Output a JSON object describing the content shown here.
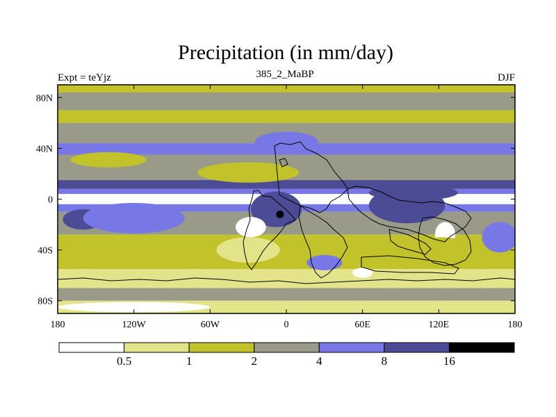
{
  "chart_data": {
    "type": "heatmap",
    "title": "Precipitation (in mm/day)",
    "left_label": "Expt = teYjz",
    "center_label": "385_2_MaBP",
    "right_label": "DJF",
    "x_range": [
      -180,
      180
    ],
    "y_range": [
      -90,
      90
    ],
    "x_ticks": [
      {
        "value": -180,
        "label": "180"
      },
      {
        "value": -120,
        "label": "120W"
      },
      {
        "value": -60,
        "label": "60W"
      },
      {
        "value": 0,
        "label": "0"
      },
      {
        "value": 60,
        "label": "60E"
      },
      {
        "value": 120,
        "label": "120E"
      },
      {
        "value": 180,
        "label": "180"
      }
    ],
    "y_ticks": [
      {
        "value": 80,
        "label": "80N"
      },
      {
        "value": 40,
        "label": "40N"
      },
      {
        "value": 0,
        "label": "0"
      },
      {
        "value": -40,
        "label": "40S"
      },
      {
        "value": -80,
        "label": "80S"
      }
    ],
    "levels": [
      0.5,
      1,
      2,
      4,
      8,
      16
    ],
    "level_labels": [
      "0.5",
      "1",
      "2",
      "4",
      "8",
      "16"
    ],
    "colors": [
      "#ffffff",
      "#e3e38a",
      "#c2c22a",
      "#9a9a88",
      "#7777e6",
      "#4b4b96",
      "#000000"
    ],
    "bands": [
      {
        "lat_from": 90,
        "lat_to": 84,
        "level_index": 2
      },
      {
        "lat_from": 84,
        "lat_to": 70,
        "level_index": 3
      },
      {
        "lat_from": 70,
        "lat_to": 60,
        "level_index": 2
      },
      {
        "lat_from": 60,
        "lat_to": 44,
        "level_index": 3
      },
      {
        "lat_from": 44,
        "lat_to": 35,
        "level_index": 4
      },
      {
        "lat_from": 35,
        "lat_to": 15,
        "level_index": 3
      },
      {
        "lat_from": 15,
        "lat_to": 8,
        "level_index": 5
      },
      {
        "lat_from": 8,
        "lat_to": 4,
        "level_index": 4
      },
      {
        "lat_from": 4,
        "lat_to": -4,
        "level_index": 0
      },
      {
        "lat_from": -4,
        "lat_to": -10,
        "level_index": 4
      },
      {
        "lat_from": -10,
        "lat_to": -28,
        "level_index": 3
      },
      {
        "lat_from": -28,
        "lat_to": -55,
        "level_index": 2
      },
      {
        "lat_from": -55,
        "lat_to": -70,
        "level_index": 1
      },
      {
        "lat_from": -70,
        "lat_to": -80,
        "level_index": 3
      },
      {
        "lat_from": -80,
        "lat_to": -90,
        "level_index": 1
      }
    ],
    "patches": [
      {
        "lon": -140,
        "lat": 31,
        "rlon": 30,
        "rlat": 6,
        "level_index": 2
      },
      {
        "lon": -30,
        "lat": 21,
        "rlon": 40,
        "rlat": 8,
        "level_index": 2
      },
      {
        "lon": -160,
        "lat": -16,
        "rlon": 16,
        "rlat": 8,
        "level_index": 5
      },
      {
        "lon": -120,
        "lat": -15,
        "rlon": 40,
        "rlat": 12,
        "level_index": 4
      },
      {
        "lon": 0,
        "lat": 45,
        "rlon": 25,
        "rlat": 8,
        "level_index": 4
      },
      {
        "lon": -8,
        "lat": -8,
        "rlon": 20,
        "rlat": 14,
        "level_index": 5
      },
      {
        "lon": 95,
        "lat": -5,
        "rlon": 30,
        "rlat": 14,
        "level_index": 5
      },
      {
        "lon": 100,
        "lat": 5,
        "rlon": 35,
        "rlat": 6,
        "level_index": 5
      },
      {
        "lon": -5,
        "lat": -12,
        "rlon": 3,
        "rlat": 3,
        "level_index": 6
      },
      {
        "lon": -28,
        "lat": -22,
        "rlon": 12,
        "rlat": 8,
        "level_index": 0
      },
      {
        "lon": 125,
        "lat": -28,
        "rlon": 8,
        "rlat": 10,
        "level_index": 0
      },
      {
        "lon": -30,
        "lat": -40,
        "rlon": 25,
        "rlat": 10,
        "level_index": 1
      },
      {
        "lon": 120,
        "lat": -40,
        "rlon": 30,
        "rlat": 10,
        "level_index": 2
      },
      {
        "lon": 168,
        "lat": -30,
        "rlon": 14,
        "rlat": 12,
        "level_index": 4
      },
      {
        "lon": 30,
        "lat": -50,
        "rlon": 14,
        "rlat": 6,
        "level_index": 4
      },
      {
        "lon": 60,
        "lat": -58,
        "rlon": 8,
        "rlat": 4,
        "level_index": 0
      },
      {
        "lon": -120,
        "lat": -85,
        "rlon": 60,
        "rlat": 4,
        "level_index": 0
      }
    ]
  }
}
